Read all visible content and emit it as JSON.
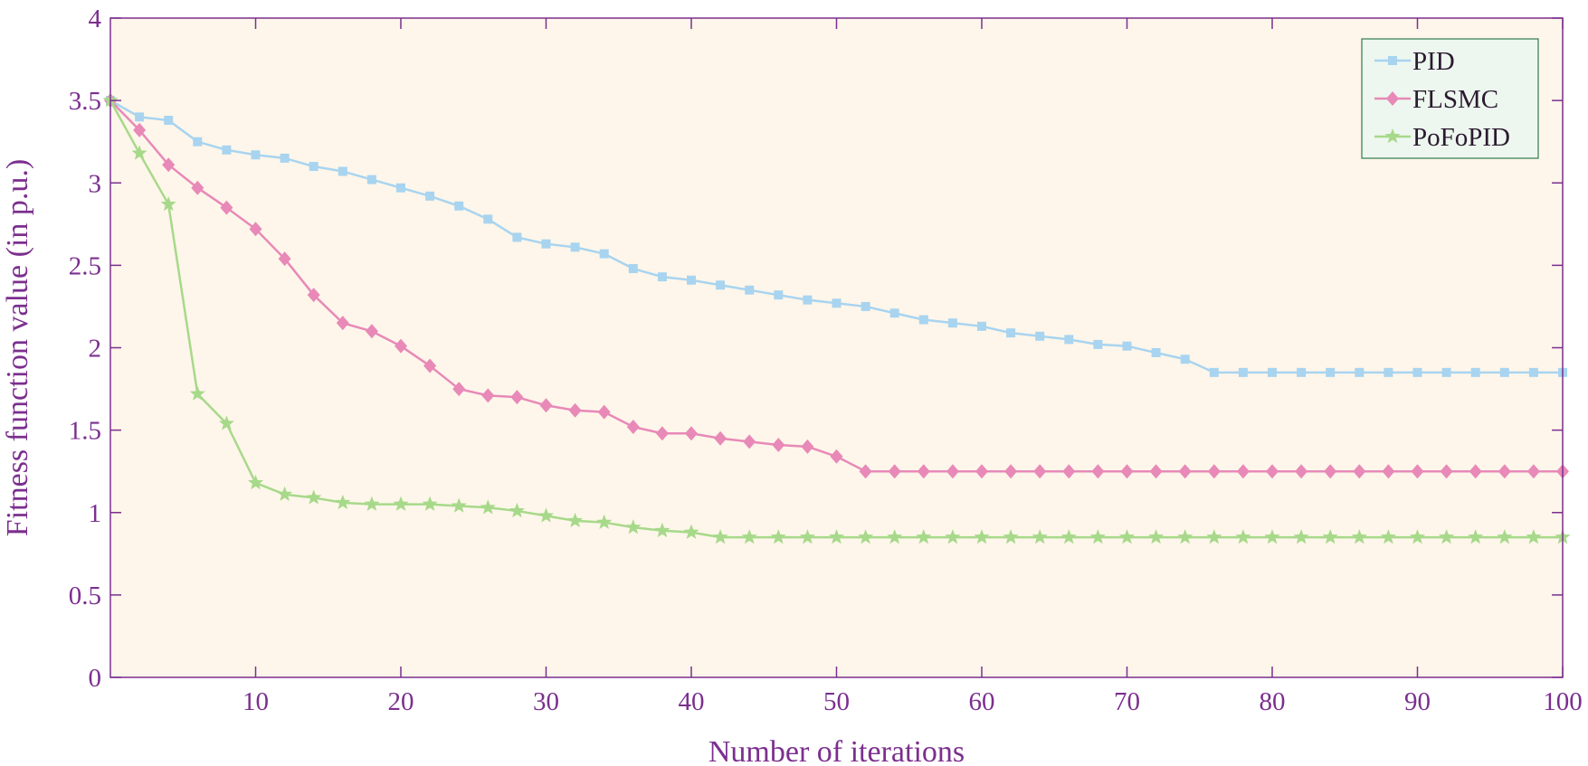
{
  "chart_data": {
    "type": "line",
    "title": "",
    "xlabel": "Number of iterations",
    "ylabel": "Fitness function value (in p.u.)",
    "xlim": [
      0,
      100
    ],
    "ylim": [
      0,
      4
    ],
    "grid": false,
    "legend_position": "top-right",
    "x_ticks": [
      10,
      20,
      30,
      40,
      50,
      60,
      70,
      80,
      90,
      100
    ],
    "x_tick_labels": [
      "10",
      "20",
      "30",
      "40",
      "50",
      "60",
      "70",
      "80",
      "90",
      "100"
    ],
    "y_ticks": [
      0,
      0.5,
      1,
      1.5,
      2,
      2.5,
      3,
      3.5,
      4
    ],
    "y_tick_labels": [
      "0",
      "0.5",
      "1",
      "1.5",
      "2",
      "2.5",
      "3",
      "3.5",
      "4"
    ],
    "x": [
      0,
      2,
      4,
      6,
      8,
      10,
      12,
      14,
      16,
      18,
      20,
      22,
      24,
      26,
      28,
      30,
      32,
      34,
      36,
      38,
      40,
      42,
      44,
      46,
      48,
      50,
      52,
      54,
      56,
      58,
      60,
      62,
      64,
      66,
      68,
      70,
      72,
      74,
      76,
      78,
      80,
      82,
      84,
      86,
      88,
      90,
      92,
      94,
      96,
      98,
      100
    ],
    "series": [
      {
        "name": "PID",
        "color": "#a8d4f0",
        "marker": "square",
        "values": [
          3.5,
          3.4,
          3.38,
          3.25,
          3.2,
          3.17,
          3.15,
          3.1,
          3.07,
          3.02,
          2.97,
          2.92,
          2.86,
          2.78,
          2.67,
          2.63,
          2.61,
          2.57,
          2.48,
          2.43,
          2.41,
          2.38,
          2.35,
          2.32,
          2.29,
          2.27,
          2.25,
          2.21,
          2.17,
          2.15,
          2.13,
          2.09,
          2.07,
          2.05,
          2.02,
          2.01,
          1.97,
          1.93,
          1.85,
          1.85,
          1.85,
          1.85,
          1.85,
          1.85,
          1.85,
          1.85,
          1.85,
          1.85,
          1.85,
          1.85,
          1.85
        ]
      },
      {
        "name": "FLSMC",
        "color": "#e889b8",
        "marker": "diamond",
        "values": [
          3.5,
          3.32,
          3.11,
          2.97,
          2.85,
          2.72,
          2.54,
          2.32,
          2.15,
          2.1,
          2.01,
          1.89,
          1.75,
          1.71,
          1.7,
          1.65,
          1.62,
          1.61,
          1.52,
          1.48,
          1.48,
          1.45,
          1.43,
          1.41,
          1.4,
          1.34,
          1.25,
          1.25,
          1.25,
          1.25,
          1.25,
          1.25,
          1.25,
          1.25,
          1.25,
          1.25,
          1.25,
          1.25,
          1.25,
          1.25,
          1.25,
          1.25,
          1.25,
          1.25,
          1.25,
          1.25,
          1.25,
          1.25,
          1.25,
          1.25,
          1.25
        ]
      },
      {
        "name": "PoFoPID",
        "color": "#a7d98a",
        "marker": "star",
        "values": [
          3.5,
          3.18,
          2.87,
          1.72,
          1.54,
          1.18,
          1.11,
          1.09,
          1.06,
          1.05,
          1.05,
          1.05,
          1.04,
          1.03,
          1.01,
          0.98,
          0.95,
          0.94,
          0.91,
          0.89,
          0.88,
          0.85,
          0.85,
          0.85,
          0.85,
          0.85,
          0.85,
          0.85,
          0.85,
          0.85,
          0.85,
          0.85,
          0.85,
          0.85,
          0.85,
          0.85,
          0.85,
          0.85,
          0.85,
          0.85,
          0.85,
          0.85,
          0.85,
          0.85,
          0.85,
          0.85,
          0.85,
          0.85,
          0.85,
          0.85,
          0.85
        ]
      }
    ]
  },
  "colors": {
    "axis": "#7b2f8e",
    "text": "#7b2f8e",
    "plot_background": "#fef6ea",
    "legend_background": "#edf7ef",
    "legend_border": "#2f7a4d"
  }
}
